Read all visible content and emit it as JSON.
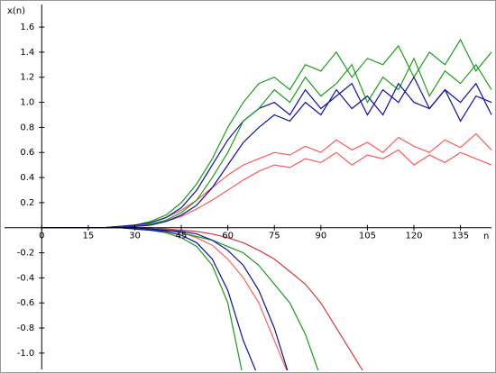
{
  "chart_data": {
    "type": "line",
    "y_label": "x(n)",
    "x_label": "n",
    "x": [
      0,
      5,
      10,
      15,
      20,
      25,
      30,
      35,
      40,
      45,
      50,
      55,
      60,
      65,
      70,
      75,
      80,
      85,
      90,
      95,
      100,
      105,
      110,
      115,
      120,
      125,
      130,
      135,
      140,
      145
    ],
    "xlim": [
      -12,
      145
    ],
    "ylim": [
      -1.13,
      1.78
    ],
    "xticks": [
      0,
      15,
      30,
      45,
      60,
      75,
      90,
      105,
      120,
      135
    ],
    "yticks": [
      {
        "value": -1,
        "label": "-1.0"
      },
      -0.8,
      -0.6,
      -0.4,
      -0.2,
      0.2,
      0.4,
      0.6,
      0.8,
      {
        "value": 1,
        "label": "1.0"
      },
      1.2,
      1.4,
      1.6
    ],
    "series": [
      {
        "color": "#d23c3c",
        "values": [
          0,
          0,
          0,
          0,
          0,
          0,
          0,
          0,
          -0.01,
          -0.02,
          -0.03,
          -0.05,
          -0.08,
          -0.12,
          -0.18,
          -0.25,
          -0.35,
          -0.45,
          -0.6,
          -0.8,
          -1.0,
          -1.2,
          null,
          null,
          null,
          null,
          null,
          null,
          null,
          null
        ]
      },
      {
        "color": "#ff6060",
        "values": [
          0,
          0,
          0,
          0,
          0,
          0,
          0,
          -0.01,
          -0.02,
          -0.04,
          -0.08,
          -0.14,
          -0.25,
          -0.4,
          -0.6,
          -0.9,
          -1.2,
          null,
          null,
          null,
          null,
          null,
          null,
          null,
          null,
          null,
          null,
          null,
          null,
          null
        ]
      },
      {
        "color": "#1a9a1a",
        "values": [
          0,
          0,
          0,
          0,
          0,
          0,
          0,
          -0.01,
          -0.02,
          -0.04,
          -0.07,
          -0.1,
          -0.15,
          -0.2,
          -0.3,
          -0.45,
          -0.6,
          -0.85,
          -1.2,
          null,
          null,
          null,
          null,
          null,
          null,
          null,
          null,
          null,
          null,
          null
        ]
      },
      {
        "color": "#1a9a1a",
        "values": [
          0,
          0,
          0,
          0,
          0,
          0,
          -0.01,
          -0.02,
          -0.04,
          -0.08,
          -0.15,
          -0.3,
          -0.6,
          -1.2,
          null,
          null,
          null,
          null,
          null,
          null,
          null,
          null,
          null,
          null,
          null,
          null,
          null,
          null,
          null,
          null
        ]
      },
      {
        "color": "#1010a0",
        "values": [
          0,
          0,
          0,
          0,
          0,
          0,
          -0.01,
          -0.02,
          -0.03,
          -0.06,
          -0.12,
          -0.25,
          -0.5,
          -0.9,
          -1.2,
          null,
          null,
          null,
          null,
          null,
          null,
          null,
          null,
          null,
          null,
          null,
          null,
          null,
          null,
          null
        ]
      },
      {
        "color": "#1010a0",
        "values": [
          0,
          0,
          0,
          0,
          0,
          0,
          0,
          -0.01,
          -0.02,
          -0.03,
          -0.05,
          -0.1,
          -0.18,
          -0.3,
          -0.5,
          -0.8,
          -1.2,
          null,
          null,
          null,
          null,
          null,
          null,
          null,
          null,
          null,
          null,
          null,
          null,
          null
        ]
      },
      {
        "color": "#ff5a5a",
        "values": [
          0,
          0,
          0,
          0,
          0,
          0.01,
          0.02,
          0.04,
          0.08,
          0.14,
          0.22,
          0.32,
          0.42,
          0.5,
          0.55,
          0.6,
          0.58,
          0.65,
          0.6,
          0.7,
          0.62,
          0.68,
          0.6,
          0.72,
          0.65,
          0.6,
          0.7,
          0.64,
          0.75,
          0.62
        ]
      },
      {
        "color": "#ff5a5a",
        "values": [
          0,
          0,
          0,
          0,
          0,
          0,
          0.01,
          0.02,
          0.05,
          0.09,
          0.15,
          0.22,
          0.3,
          0.38,
          0.45,
          0.5,
          0.48,
          0.55,
          0.52,
          0.6,
          0.5,
          0.58,
          0.55,
          0.62,
          0.5,
          0.58,
          0.52,
          0.6,
          0.55,
          0.5
        ]
      },
      {
        "color": "#1c9e1c",
        "values": [
          0,
          0,
          0,
          0,
          0,
          0.01,
          0.02,
          0.05,
          0.1,
          0.2,
          0.35,
          0.55,
          0.8,
          1.0,
          1.15,
          1.2,
          1.1,
          1.3,
          1.25,
          1.4,
          1.2,
          1.35,
          1.3,
          1.45,
          1.2,
          1.4,
          1.3,
          1.5,
          1.25,
          1.4
        ]
      },
      {
        "color": "#1010a0",
        "values": [
          0,
          0,
          0,
          0,
          0,
          0.01,
          0.02,
          0.04,
          0.08,
          0.16,
          0.3,
          0.5,
          0.7,
          0.85,
          0.95,
          1.0,
          0.9,
          1.1,
          0.95,
          1.05,
          1.15,
          0.9,
          1.1,
          1.0,
          1.2,
          0.95,
          1.1,
          1.0,
          1.15,
          0.9
        ]
      },
      {
        "color": "#1c9e1c",
        "values": [
          0,
          0,
          0,
          0,
          0,
          0,
          0.01,
          0.03,
          0.06,
          0.12,
          0.22,
          0.4,
          0.6,
          0.85,
          0.95,
          1.1,
          1.0,
          1.2,
          1.05,
          1.15,
          1.3,
          1.0,
          1.2,
          1.1,
          1.35,
          1.05,
          1.25,
          1.15,
          1.3,
          1.1
        ]
      },
      {
        "color": "#1010a0",
        "values": [
          0,
          0,
          0,
          0,
          0,
          0,
          0.01,
          0.02,
          0.05,
          0.1,
          0.18,
          0.32,
          0.5,
          0.68,
          0.8,
          0.9,
          0.85,
          1.0,
          0.9,
          1.1,
          0.95,
          1.05,
          0.9,
          1.15,
          1.0,
          0.95,
          1.1,
          0.85,
          1.05,
          1.0
        ]
      }
    ]
  }
}
